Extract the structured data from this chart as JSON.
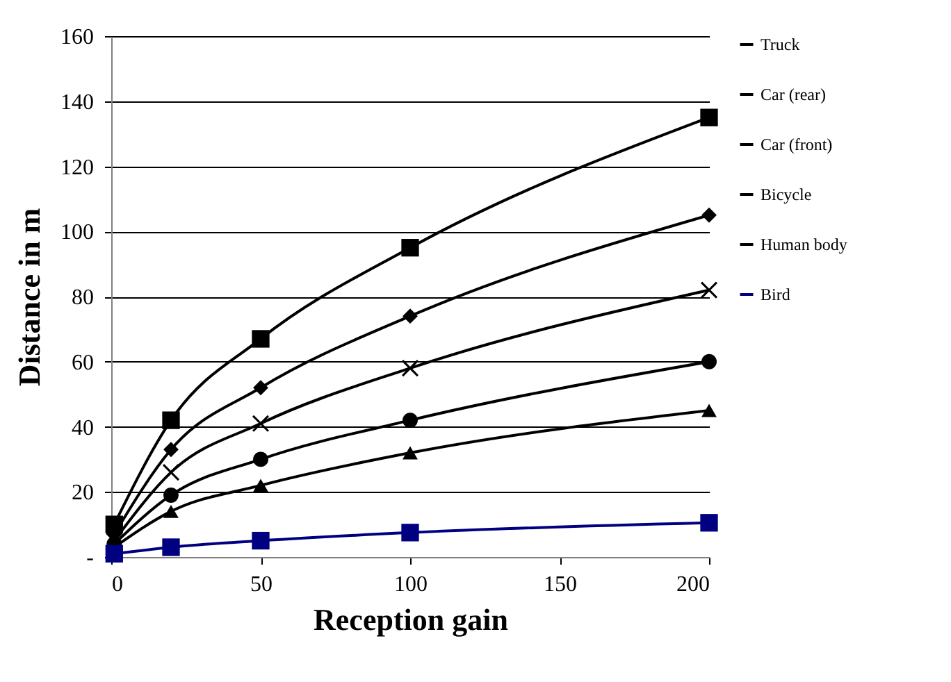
{
  "chart_data": {
    "type": "line",
    "xlabel": "Reception gain",
    "ylabel": "Distance in m",
    "x": [
      1,
      20,
      50,
      100,
      200
    ],
    "series": [
      {
        "name": "Truck",
        "color": "#000000",
        "marker": "square",
        "values": [
          10,
          42,
          67,
          95,
          135
        ]
      },
      {
        "name": "Car (rear)",
        "color": "#000000",
        "marker": "diamond",
        "values": [
          7,
          33,
          52,
          74,
          105
        ]
      },
      {
        "name": "Car (front)",
        "color": "#000000",
        "marker": "cross",
        "values": [
          5,
          26,
          41,
          58,
          82
        ]
      },
      {
        "name": "Bicycle",
        "color": "#000000",
        "marker": "circle",
        "values": [
          4,
          19,
          30,
          42,
          60
        ]
      },
      {
        "name": "Human body",
        "color": "#000000",
        "marker": "triangle",
        "values": [
          3,
          14,
          22,
          32,
          45
        ]
      },
      {
        "name": "Bird",
        "color": "#000080",
        "marker": "square",
        "values": [
          1,
          3,
          5,
          7.5,
          10.5
        ]
      }
    ],
    "xlim": [
      0,
      200
    ],
    "xticks": [
      0,
      50,
      100,
      150,
      200
    ],
    "ylim": [
      0,
      160
    ],
    "yticks": [
      {
        "value": 0,
        "label": "-"
      },
      20,
      40,
      60,
      80,
      100,
      120,
      140,
      160
    ],
    "grid": "y",
    "legend": "right"
  }
}
